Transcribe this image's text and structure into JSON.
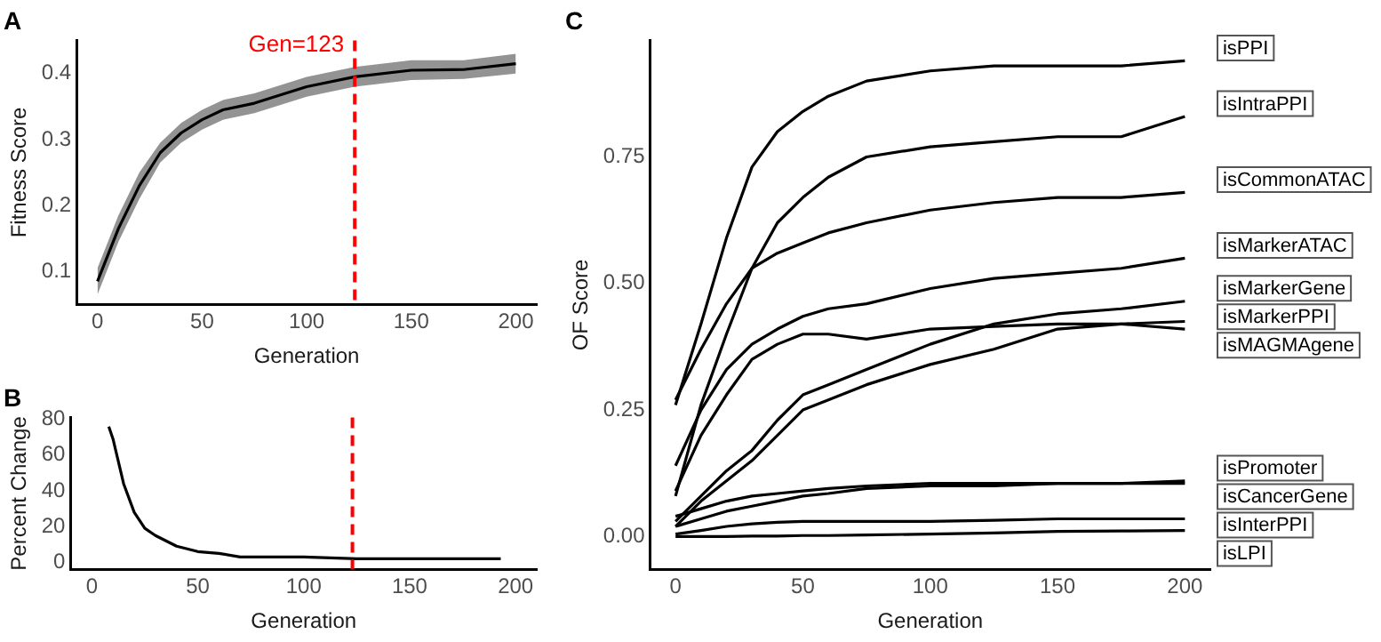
{
  "chart_data": [
    {
      "type": "line",
      "title": "A",
      "xlabel": "Generation",
      "ylabel": "Fitness Score",
      "xlim": [
        -10,
        210
      ],
      "ylim": [
        0.05,
        0.45
      ],
      "xticks": [
        0,
        50,
        100,
        150,
        200
      ],
      "yticks": [
        0.1,
        0.2,
        0.3,
        0.4
      ],
      "grid": false,
      "legend": false,
      "x": [
        0,
        10,
        20,
        30,
        40,
        50,
        60,
        75,
        100,
        123,
        150,
        175,
        200
      ],
      "series": [
        {
          "color": "#000000",
          "values": [
            0.085,
            0.165,
            0.23,
            0.28,
            0.31,
            0.33,
            0.345,
            0.355,
            0.38,
            0.395,
            0.405,
            0.406,
            0.415
          ],
          "lower": [
            0.065,
            0.145,
            0.21,
            0.265,
            0.295,
            0.315,
            0.33,
            0.34,
            0.365,
            0.38,
            0.39,
            0.392,
            0.4
          ],
          "upper": [
            0.105,
            0.185,
            0.25,
            0.295,
            0.325,
            0.345,
            0.36,
            0.37,
            0.395,
            0.41,
            0.42,
            0.42,
            0.43
          ]
        }
      ],
      "ref_lines": [
        {
          "axis": "x",
          "value": 123,
          "label": "Gen=123",
          "color": "#ff0000",
          "line_style": "dashed"
        }
      ]
    },
    {
      "type": "line",
      "title": "B",
      "xlabel": "Generation",
      "ylabel": "Percent Change",
      "xlim": [
        -10,
        210
      ],
      "ylim": [
        -4,
        81
      ],
      "xticks": [
        0,
        50,
        100,
        150,
        200
      ],
      "yticks": [
        0,
        20,
        40,
        60,
        80
      ],
      "grid": false,
      "legend": false,
      "x": [
        8,
        10,
        15,
        20,
        25,
        30,
        40,
        50,
        60,
        70,
        100,
        125,
        150,
        175,
        193
      ],
      "series": [
        {
          "color": "#000000",
          "values": [
            76,
            69,
            44,
            28,
            19,
            15,
            9,
            6,
            5,
            3,
            3,
            2,
            2,
            2,
            2
          ]
        }
      ],
      "ref_lines": [
        {
          "axis": "x",
          "value": 123,
          "color": "#ff0000",
          "line_style": "dashed"
        }
      ]
    },
    {
      "type": "line",
      "title": "C",
      "xlabel": "Generation",
      "ylabel": "OF Score",
      "xlim": [
        -10,
        210
      ],
      "ylim": [
        -0.065,
        0.98
      ],
      "xticks": [
        0,
        50,
        100,
        150,
        200
      ],
      "yticks": [
        {
          "value": 0,
          "label": "0.00"
        },
        {
          "value": 0.25,
          "label": "0.25"
        },
        {
          "value": 0.5,
          "label": "0.50"
        },
        {
          "value": 0.75,
          "label": "0.75"
        }
      ],
      "grid": false,
      "legend": false,
      "x": [
        0,
        10,
        20,
        30,
        40,
        50,
        60,
        75,
        100,
        125,
        150,
        175,
        200
      ],
      "series": [
        {
          "name": "isPPI",
          "color": "#000000",
          "values": [
            0.26,
            0.42,
            0.59,
            0.73,
            0.8,
            0.84,
            0.87,
            0.9,
            0.92,
            0.93,
            0.93,
            0.93,
            0.94
          ]
        },
        {
          "name": "isIntraPPI",
          "color": "#000000",
          "values": [
            0.08,
            0.26,
            0.4,
            0.53,
            0.62,
            0.67,
            0.71,
            0.75,
            0.77,
            0.78,
            0.79,
            0.79,
            0.83
          ]
        },
        {
          "name": "isCommonATAC",
          "color": "#000000",
          "values": [
            0.27,
            0.37,
            0.46,
            0.53,
            0.56,
            0.58,
            0.6,
            0.62,
            0.645,
            0.66,
            0.67,
            0.67,
            0.68
          ]
        },
        {
          "name": "isMarkerATAC",
          "color": "#000000",
          "values": [
            0.14,
            0.25,
            0.33,
            0.38,
            0.41,
            0.435,
            0.45,
            0.46,
            0.49,
            0.51,
            0.52,
            0.53,
            0.55
          ]
        },
        {
          "name": "isMAGMAgene",
          "color": "#000000",
          "values": [
            0.09,
            0.2,
            0.28,
            0.35,
            0.38,
            0.4,
            0.4,
            0.39,
            0.41,
            0.415,
            0.42,
            0.42,
            0.41
          ]
        },
        {
          "name": "isMarkerGene",
          "color": "#000000",
          "values": [
            0.03,
            0.08,
            0.13,
            0.17,
            0.23,
            0.28,
            0.3,
            0.33,
            0.38,
            0.42,
            0.44,
            0.45,
            0.465
          ]
        },
        {
          "name": "isMarkerPPI",
          "color": "#000000",
          "values": [
            0.02,
            0.07,
            0.11,
            0.15,
            0.2,
            0.25,
            0.27,
            0.3,
            0.34,
            0.37,
            0.41,
            0.42,
            0.425
          ]
        },
        {
          "name": "isPromoter",
          "color": "#000000",
          "values": [
            0.04,
            0.055,
            0.07,
            0.08,
            0.085,
            0.09,
            0.095,
            0.1,
            0.105,
            0.105,
            0.105,
            0.105,
            0.11
          ]
        },
        {
          "name": "isCancerGene",
          "color": "#000000",
          "values": [
            0.02,
            0.035,
            0.05,
            0.06,
            0.07,
            0.08,
            0.085,
            0.095,
            0.1,
            0.1,
            0.105,
            0.105,
            0.105
          ]
        },
        {
          "name": "isInterPPI",
          "color": "#000000",
          "values": [
            0.005,
            0.012,
            0.02,
            0.025,
            0.028,
            0.03,
            0.03,
            0.03,
            0.03,
            0.032,
            0.035,
            0.035,
            0.035
          ]
        },
        {
          "name": "isLPI",
          "color": "#000000",
          "values": [
            0,
            0,
            0,
            0.001,
            0.001,
            0.002,
            0.002,
            0.003,
            0.005,
            0.007,
            0.01,
            0.011,
            0.012
          ]
        }
      ]
    }
  ]
}
